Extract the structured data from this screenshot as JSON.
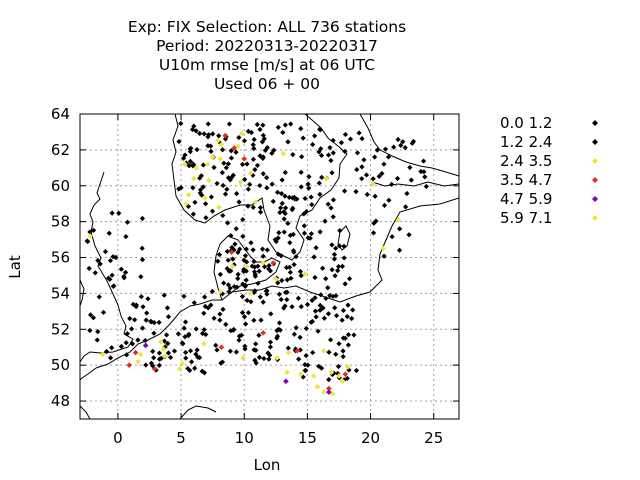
{
  "chart_data": {
    "type": "scatter",
    "title_lines": [
      "Exp: FIX   Selection: ALL    736 stations",
      "Period: 20220313-20220317",
      "U10m rmse [m/s] at  06 UTC",
      "Used  06 + 00"
    ],
    "xlabel": "Lon",
    "ylabel": "Lat",
    "xlim": [
      -3,
      27
    ],
    "ylim": [
      47,
      64
    ],
    "x_ticks": [
      0,
      5,
      10,
      15,
      20,
      25
    ],
    "y_ticks": [
      48,
      50,
      52,
      54,
      56,
      58,
      60,
      62,
      64
    ],
    "grid": true,
    "legend_position": "right",
    "bins": [
      {
        "label": "0.0 1.2",
        "color": "#000000"
      },
      {
        "label": "1.2 2.4",
        "color": "#000000"
      },
      {
        "label": "2.4 3.5",
        "color": "#f0e442"
      },
      {
        "label": "3.5 4.7",
        "color": "#e03020"
      },
      {
        "label": "4.7 5.9",
        "color": "#8000c0"
      },
      {
        "label": "5.9 7.1",
        "color": "#f0e442"
      }
    ],
    "series": [
      {
        "bin": 2,
        "points": [
          [
            7.9,
            62.5
          ],
          [
            8.2,
            62.3
          ],
          [
            9.8,
            62.9
          ],
          [
            9.5,
            62.2
          ],
          [
            7.5,
            61.6
          ],
          [
            8.1,
            61.5
          ],
          [
            13.1,
            61.8
          ],
          [
            5.3,
            61.2
          ],
          [
            6.2,
            61.0
          ],
          [
            7.1,
            61.2
          ],
          [
            6.0,
            60.4
          ],
          [
            7.2,
            60.3
          ],
          [
            10.5,
            60.7
          ],
          [
            9.7,
            60.2
          ],
          [
            16.5,
            60.4
          ],
          [
            20.2,
            60.1
          ],
          [
            6.9,
            59.3
          ],
          [
            5.4,
            59.0
          ],
          [
            10.9,
            59.1
          ],
          [
            8.0,
            58.8
          ],
          [
            22.2,
            58.1
          ],
          [
            -2.2,
            57.2
          ],
          [
            21.0,
            56.5
          ],
          [
            11.5,
            55.7
          ],
          [
            9.1,
            55.5
          ],
          [
            10.2,
            55.5
          ],
          [
            12.5,
            54.8
          ],
          [
            14.8,
            55.1
          ],
          [
            8.1,
            54.1
          ],
          [
            10.5,
            54.0
          ],
          [
            3.4,
            51.3
          ],
          [
            3.6,
            50.9
          ],
          [
            6.8,
            51.2
          ],
          [
            3.7,
            50.5
          ],
          [
            5.1,
            50.1
          ],
          [
            9.9,
            50.4
          ],
          [
            12.6,
            50.4
          ],
          [
            13.5,
            50.7
          ],
          [
            16.3,
            50.8
          ],
          [
            1.6,
            50.2
          ],
          [
            1.8,
            50.6
          ],
          [
            -1.2,
            50.6
          ],
          [
            4.9,
            49.8
          ],
          [
            13.4,
            49.6
          ],
          [
            14.5,
            49.5
          ],
          [
            15.5,
            49.4
          ],
          [
            16.9,
            49.6
          ],
          [
            17.5,
            49.4
          ],
          [
            18.2,
            49.9
          ],
          [
            17.8,
            49.1
          ],
          [
            15.8,
            48.8
          ],
          [
            16.3,
            48.5
          ],
          [
            17.0,
            48.4
          ],
          [
            5.6,
            59.5
          ]
        ]
      },
      {
        "bin": 3,
        "points": [
          [
            8.5,
            62.8
          ],
          [
            9.2,
            62.1
          ],
          [
            10.0,
            61.5
          ],
          [
            12.3,
            55.7
          ],
          [
            9.0,
            56.3
          ],
          [
            8.2,
            51.0
          ],
          [
            11.5,
            51.8
          ],
          [
            14.2,
            50.8
          ],
          [
            1.4,
            50.7
          ],
          [
            0.9,
            50.0
          ],
          [
            2.9,
            49.8
          ],
          [
            18.0,
            49.5
          ],
          [
            16.7,
            48.7
          ]
        ]
      },
      {
        "bin": 4,
        "points": [
          [
            2.2,
            51.1
          ],
          [
            16.7,
            48.5
          ],
          [
            13.3,
            49.1
          ]
        ]
      }
    ]
  }
}
